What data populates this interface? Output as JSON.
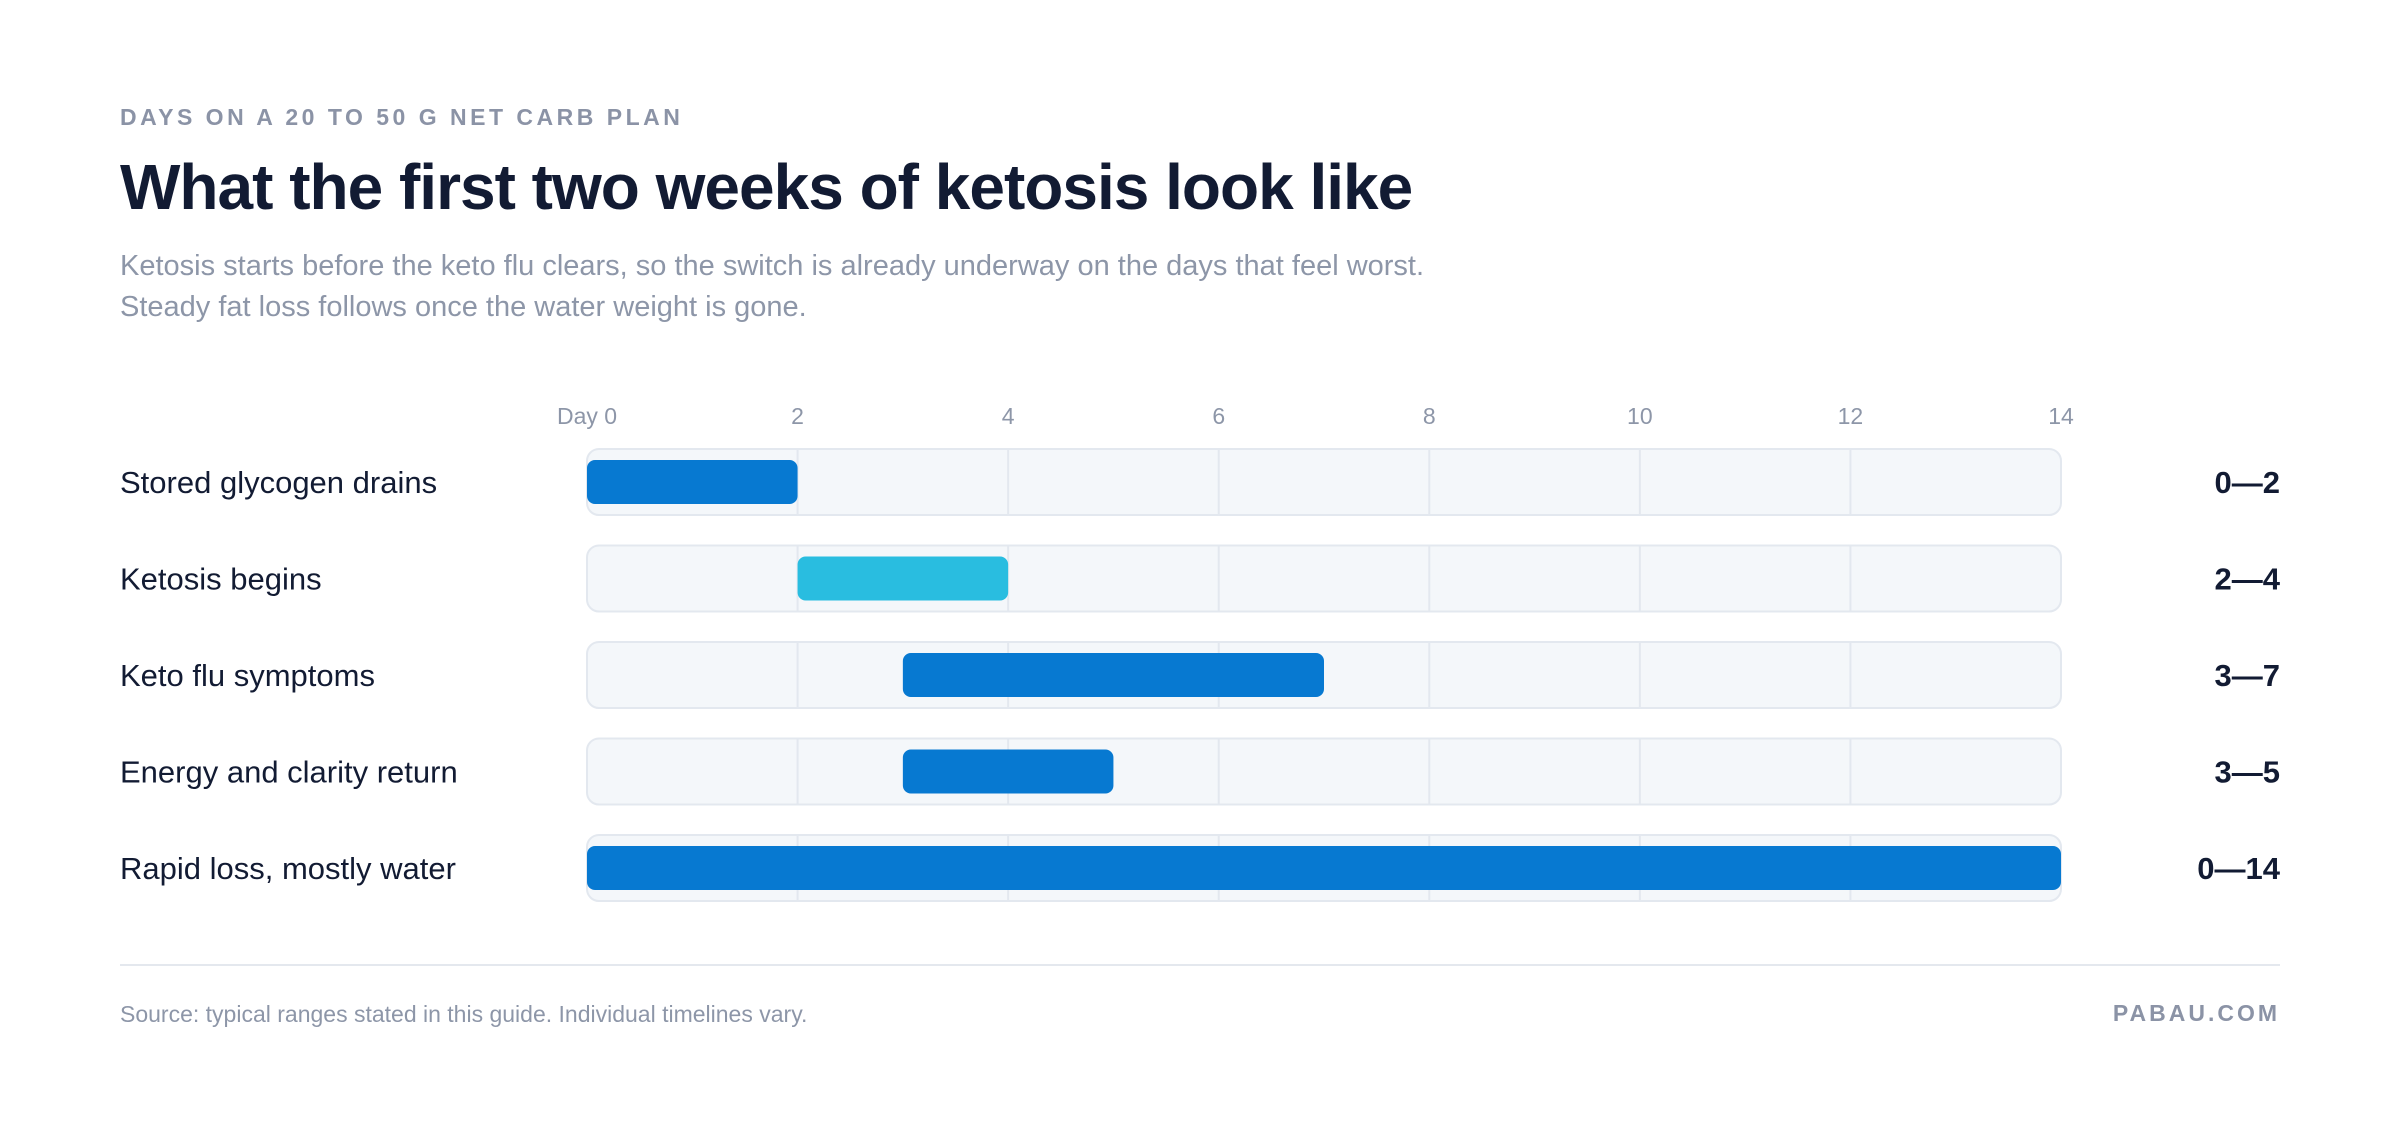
{
  "header": {
    "eyebrow": "DAYS ON A 20 TO 50 G NET CARB PLAN",
    "title": "What the first two weeks of ketosis look like",
    "subtitle_lines": [
      "Ketosis starts before the keto flu clears, so the switch is already underway on the days that feel worst.",
      "Steady fat loss follows once the water weight is gone."
    ]
  },
  "chart_data": {
    "type": "bar",
    "orientation": "horizontal-range",
    "x_ticks": [
      "Day 0",
      "2",
      "4",
      "6",
      "8",
      "10",
      "12",
      "14"
    ],
    "xlim": [
      0,
      14
    ],
    "grid": true,
    "categories": [
      "Stored glycogen drains",
      "Ketosis begins",
      "Keto flu symptoms",
      "Energy and clarity return",
      "Rapid loss, mostly water"
    ],
    "ranges": [
      {
        "start": 0,
        "end": 2,
        "label": "0—2",
        "color": "#0779d1"
      },
      {
        "start": 2,
        "end": 4,
        "label": "2—4",
        "color": "#29bde0"
      },
      {
        "start": 3,
        "end": 7,
        "label": "3—7",
        "color": "#0779d1"
      },
      {
        "start": 3,
        "end": 5,
        "label": "3—5",
        "color": "#0779d1"
      },
      {
        "start": 0,
        "end": 14,
        "label": "0—14",
        "color": "#0779d1"
      }
    ]
  },
  "footer": {
    "source": "Source: typical ranges stated in this guide. Individual timelines vary.",
    "brand": "PABAU.COM"
  },
  "colors": {
    "primary_bar": "#0779d1",
    "accent_bar": "#29bde0",
    "track": "#f4f7fa",
    "track_border": "#e3e8ef",
    "title": "#121b33",
    "muted": "#8d96a8"
  }
}
